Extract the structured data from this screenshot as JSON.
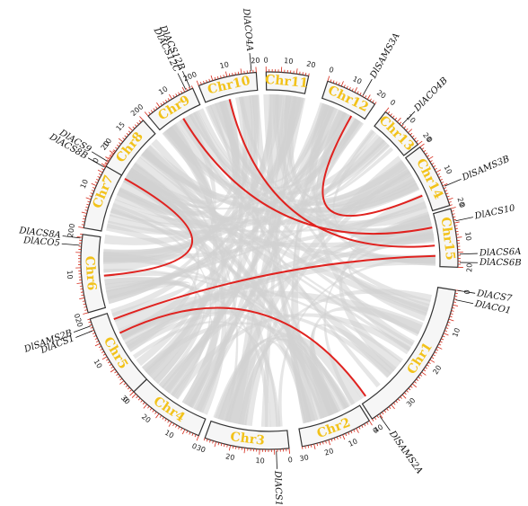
{
  "colors": {
    "block_stroke": "#333333",
    "block_fill": "#f6f6f6",
    "label": "#f2c21a",
    "tick": "#d62a1a",
    "link_highlight": "#e0221f",
    "link_background": "#d2d2d2",
    "tick_label": "#222222",
    "gene_label": "#111111"
  },
  "chromosomes": [
    {
      "name": "Chr1",
      "ticks": [
        "0",
        "10",
        "20",
        "30",
        "40"
      ]
    },
    {
      "name": "Chr2",
      "ticks": [
        "0",
        "10",
        "20",
        "30"
      ]
    },
    {
      "name": "Chr3",
      "ticks": [
        "0",
        "10",
        "20",
        "30"
      ]
    },
    {
      "name": "Chr4",
      "ticks": [
        "0",
        "10",
        "20",
        "30"
      ]
    },
    {
      "name": "Chr5",
      "ticks": [
        "0",
        "10",
        "20"
      ]
    },
    {
      "name": "Chr6",
      "ticks": [
        "0",
        "10",
        "20"
      ]
    },
    {
      "name": "Chr7",
      "ticks": [
        "0",
        "10",
        "20"
      ]
    },
    {
      "name": "Chr8",
      "ticks": [
        "0",
        "10",
        "15",
        "20"
      ]
    },
    {
      "name": "Chr9",
      "ticks": [
        "0",
        "10",
        "20"
      ]
    },
    {
      "name": "Chr10",
      "ticks": [
        "0",
        "10",
        "20"
      ]
    },
    {
      "name": "Chr11",
      "ticks": [
        "0",
        "10",
        "20"
      ]
    },
    {
      "name": "Chr12",
      "ticks": [
        "0",
        "10",
        "20"
      ]
    },
    {
      "name": "Chr13",
      "ticks": [
        "0",
        "10",
        "20"
      ]
    },
    {
      "name": "Chr14",
      "ticks": [
        "0",
        "10",
        "20"
      ]
    },
    {
      "name": "Chr15",
      "ticks": [
        "0",
        "10",
        "20"
      ]
    }
  ],
  "genes": [
    {
      "name": "DlACS10",
      "chr": "Chr15",
      "pos": 0.22
    },
    {
      "name": "DlACS6A",
      "chr": "Chr15",
      "pos": 0.78
    },
    {
      "name": "DlACS6B",
      "chr": "Chr15",
      "pos": 0.92
    },
    {
      "name": "DlACS7",
      "chr": "Chr1",
      "pos": 0.0
    },
    {
      "name": "DlACO1",
      "chr": "Chr1",
      "pos": 0.06
    },
    {
      "name": "DlSAMS2A",
      "chr": "Chr1",
      "pos": 0.95
    },
    {
      "name": "DlACS12A",
      "chr": "Chr3",
      "pos": 0.15
    },
    {
      "name": "DlACS1",
      "chr": "Chr5",
      "pos": 0.86
    },
    {
      "name": "DlSAMS2B",
      "chr": "Chr5",
      "pos": 0.92
    },
    {
      "name": "DlACO5",
      "chr": "Chr6",
      "pos": 0.86
    },
    {
      "name": "DlACS8A",
      "chr": "Chr6",
      "pos": 0.95
    },
    {
      "name": "DlACS8B",
      "chr": "Chr7",
      "pos": 0.78
    },
    {
      "name": "DlACS9",
      "chr": "Chr7",
      "pos": 0.86
    },
    {
      "name": "DlACS12C",
      "chr": "Chr9",
      "pos": 0.87
    },
    {
      "name": "DlACS12B",
      "chr": "Chr9",
      "pos": 0.96
    },
    {
      "name": "DlACO4A",
      "chr": "Chr10",
      "pos": 0.92
    },
    {
      "name": "DlSAMS3A",
      "chr": "Chr12",
      "pos": 0.72
    },
    {
      "name": "DlACO4B",
      "chr": "Chr13",
      "pos": 0.45
    },
    {
      "name": "DlSAMS3B",
      "chr": "Chr14",
      "pos": 0.7
    }
  ],
  "highlight_links": [
    [
      "Chr10",
      0.45,
      "Chr15",
      0.6
    ],
    [
      "Chr9",
      0.55,
      "Chr15",
      0.25
    ],
    [
      "Chr12",
      0.72,
      "Chr14",
      0.7
    ],
    [
      "Chr7",
      0.78,
      "Chr6",
      0.45
    ],
    [
      "Chr15",
      0.8,
      "Chr5",
      0.9
    ],
    [
      "Chr1",
      0.95,
      "Chr5",
      0.7
    ]
  ]
}
